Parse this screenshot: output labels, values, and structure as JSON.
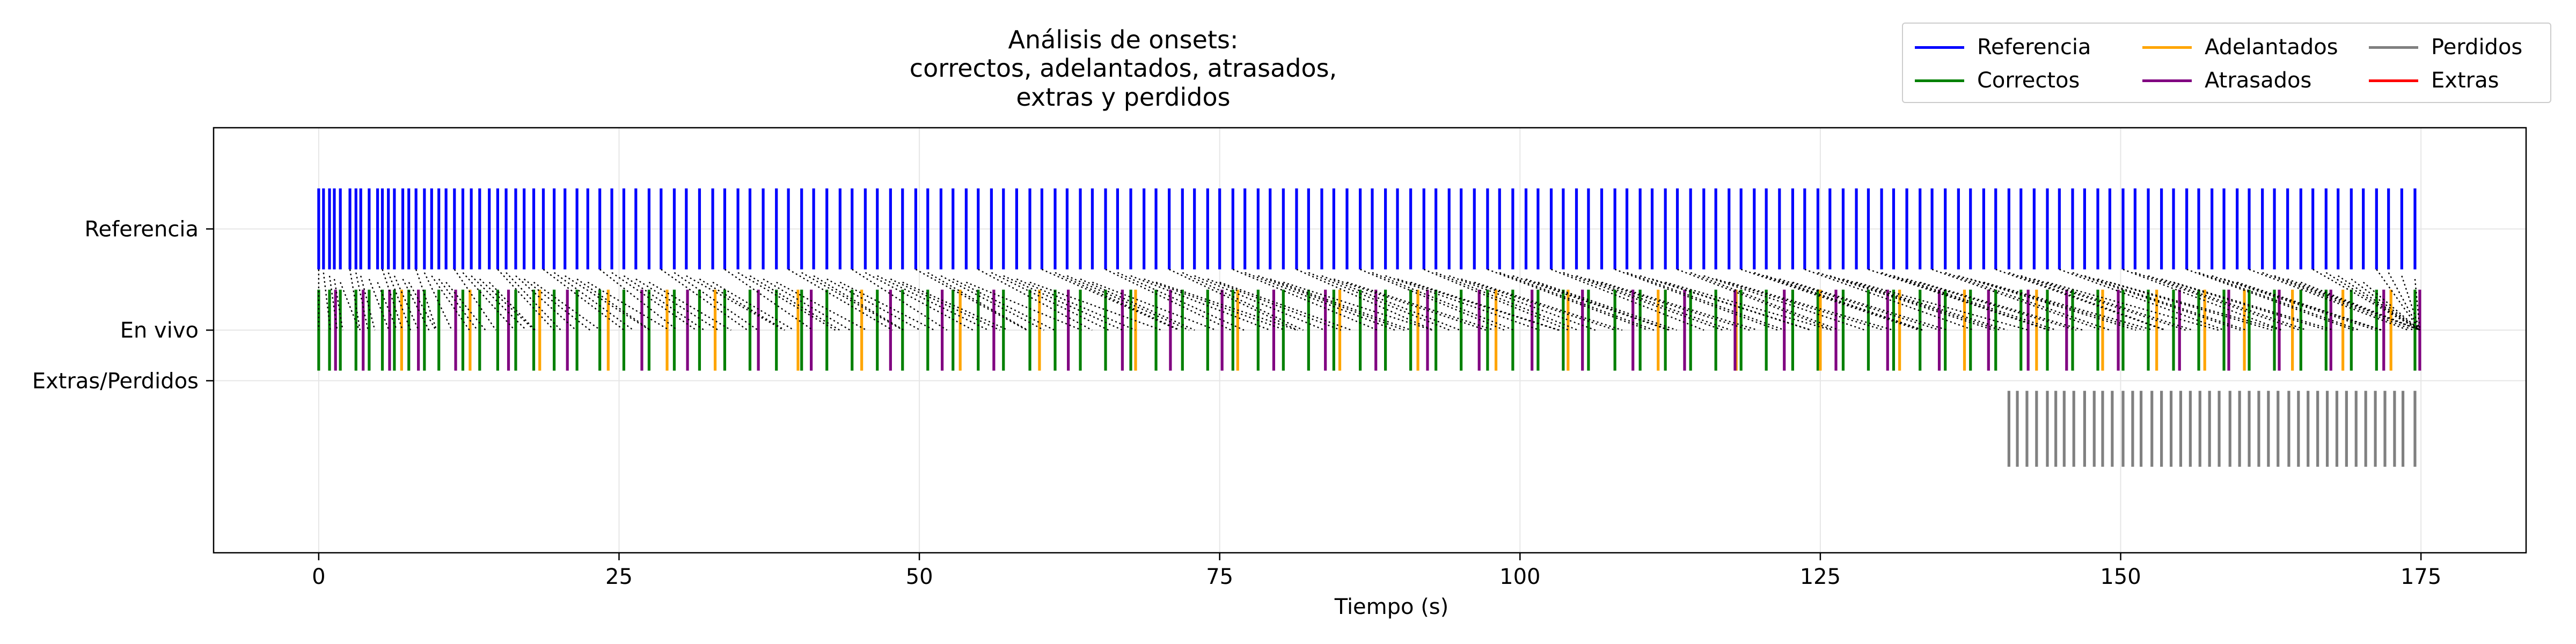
{
  "chart_data": {
    "type": "event-raster",
    "title": [
      "Análisis de onsets:",
      "correctos, adelantados, atrasados,",
      "extras y perdidos"
    ],
    "xlabel": "Tiempo (s)",
    "ylabel": "",
    "xlim": [
      -8.75,
      183.75
    ],
    "xticks": [
      0,
      25,
      50,
      75,
      100,
      125,
      150,
      175
    ],
    "xtick_labels": [
      "0",
      "25",
      "50",
      "75",
      "100",
      "125",
      "150",
      "175"
    ],
    "yticks": [
      {
        "label": "Referencia",
        "value": 2.0
      },
      {
        "label": "En vivo",
        "value": 1.0
      },
      {
        "label": "Extras/Perdidos",
        "value": 0.5
      }
    ],
    "ylim": [
      -1.2,
      3.0
    ],
    "grid": true,
    "legend": {
      "position": "top-right",
      "columns": 3,
      "entries": [
        {
          "name": "Referencia",
          "color": "#0000ff"
        },
        {
          "name": "Correctos",
          "color": "#008000"
        },
        {
          "name": "Adelantados",
          "color": "#ffa500"
        },
        {
          "name": "Atrasados",
          "color": "#800080"
        },
        {
          "name": "Perdidos",
          "color": "#808080"
        },
        {
          "name": "Extras",
          "color": "#ff0000"
        }
      ]
    },
    "series": [
      {
        "name": "Referencia",
        "row_y": [
          1.6,
          2.4
        ],
        "color": "#0000ff",
        "times": [
          0.0,
          0.4,
          0.9,
          1.3,
          1.8,
          2.6,
          3.1,
          3.5,
          4.2,
          4.9,
          5.3,
          5.8,
          6.3,
          7.0,
          7.5,
          8.1,
          8.8,
          9.4,
          10.0,
          10.6,
          11.3,
          12.0,
          12.7,
          13.4,
          14.2,
          14.9,
          15.6,
          16.4,
          17.1,
          17.9,
          18.7,
          19.6,
          20.5,
          21.5,
          22.4,
          23.4,
          24.4,
          25.4,
          26.4,
          27.5,
          28.5,
          29.6,
          30.6,
          31.7,
          32.8,
          33.8,
          34.9,
          35.9,
          37.0,
          38.1,
          39.1,
          40.2,
          41.2,
          42.3,
          43.4,
          44.4,
          45.5,
          46.5,
          47.6,
          48.6,
          49.7,
          50.7,
          51.8,
          52.8,
          53.9,
          54.9,
          56.0,
          57.0,
          58.1,
          59.2,
          60.2,
          61.3,
          62.3,
          63.4,
          64.4,
          65.5,
          66.5,
          67.6,
          68.7,
          69.7,
          70.8,
          71.9,
          72.9,
          74.0,
          75.0,
          76.1,
          77.1,
          78.2,
          79.2,
          80.3,
          81.4,
          82.4,
          83.5,
          84.5,
          85.6,
          86.7,
          87.7,
          88.8,
          89.8,
          90.9,
          92.0,
          93.0,
          94.1,
          95.1,
          96.2,
          97.3,
          98.3,
          99.4,
          100.5,
          101.5,
          102.6,
          103.6,
          104.7,
          105.7,
          106.8,
          107.9,
          108.9,
          110.0,
          111.0,
          112.1,
          113.1,
          114.2,
          115.3,
          116.3,
          117.4,
          118.4,
          119.5,
          120.5,
          121.6,
          122.7,
          123.7,
          124.8,
          125.8,
          126.9,
          128.0,
          129.0,
          130.1,
          131.1,
          132.2,
          133.3,
          134.3,
          135.4,
          136.5,
          137.5,
          138.6,
          139.6,
          140.7,
          141.7,
          142.8,
          143.9,
          144.9,
          146.0,
          147.0,
          148.1,
          149.1,
          150.2,
          151.2,
          152.3,
          153.4,
          154.4,
          155.5,
          156.5,
          157.6,
          158.6,
          159.7,
          160.7,
          161.8,
          162.8,
          163.9,
          165.0,
          166.0,
          167.1,
          168.1,
          169.2,
          170.2,
          171.3,
          172.3,
          173.4,
          174.5
        ]
      },
      {
        "name": "Correctos",
        "row_y": [
          0.6,
          1.4
        ],
        "color": "#008000",
        "times": [
          0.0,
          0.9,
          1.8,
          3.1,
          4.2,
          5.3,
          6.3,
          7.5,
          8.8,
          10.0,
          12.0,
          13.4,
          14.9,
          16.4,
          17.9,
          19.6,
          21.5,
          23.4,
          25.4,
          27.5,
          29.6,
          31.7,
          33.8,
          35.9,
          38.1,
          40.2,
          42.3,
          44.4,
          46.5,
          48.6,
          50.7,
          52.8,
          54.9,
          57.0,
          59.2,
          61.3,
          63.4,
          65.5,
          67.6,
          69.7,
          71.9,
          74.0,
          76.1,
          78.2,
          80.3,
          82.4,
          84.5,
          86.7,
          88.8,
          90.9,
          93.0,
          95.1,
          97.3,
          99.4,
          101.5,
          103.6,
          105.7,
          107.9,
          110.0,
          112.1,
          114.2,
          116.3,
          118.4,
          120.5,
          122.7,
          124.8,
          126.9,
          129.0,
          131.1,
          133.3,
          135.4,
          137.5,
          139.6,
          141.7,
          143.9,
          146.0,
          148.1,
          150.2,
          152.3,
          154.4,
          156.5,
          158.6,
          160.7,
          162.8,
          165.0,
          167.1,
          169.2,
          171.3,
          174.5
        ]
      },
      {
        "name": "Adelantados",
        "row_y": [
          0.6,
          1.4
        ],
        "color": "#ffa500",
        "times": [
          6.9,
          12.6,
          18.4,
          24.1,
          29.0,
          33.0,
          39.9,
          45.2,
          53.4,
          60.0,
          68.0,
          76.5,
          85.0,
          91.5,
          98.0,
          104.0,
          111.5,
          118.0,
          125.0,
          131.6,
          137.0,
          143.0,
          148.5,
          153.0,
          157.0,
          160.3,
          164.3,
          168.5,
          172.5
        ]
      },
      {
        "name": "Atrasados",
        "row_y": [
          0.6,
          1.4
        ],
        "color": "#800080",
        "times": [
          1.4,
          3.7,
          5.9,
          8.3,
          11.4,
          15.8,
          20.7,
          26.9,
          30.7,
          36.6,
          41.0,
          47.6,
          51.9,
          56.2,
          62.4,
          66.9,
          70.9,
          75.2,
          79.5,
          83.8,
          88.0,
          92.3,
          96.6,
          101.0,
          105.2,
          109.4,
          113.7,
          117.9,
          122.0,
          126.3,
          130.6,
          134.9,
          139.0,
          142.3,
          145.5,
          149.8,
          154.9,
          159.0,
          163.2,
          167.5,
          171.9,
          174.9
        ]
      },
      {
        "name": "Perdidos",
        "row_y": [
          -0.35,
          0.4
        ],
        "color": "#808080",
        "times": [
          140.7,
          141.4,
          142.2,
          143.0,
          143.9,
          144.6,
          145.3,
          146.1,
          147.0,
          147.8,
          148.5,
          149.3,
          150.2,
          151.0,
          151.7,
          152.6,
          153.4,
          154.2,
          155.0,
          155.8,
          156.6,
          157.4,
          158.2,
          159.1,
          159.9,
          160.7,
          161.5,
          162.3,
          163.1,
          164.0,
          164.8,
          165.6,
          166.4,
          167.2,
          168.0,
          168.8,
          169.6,
          170.4,
          171.2,
          172.0,
          172.8,
          173.5,
          174.5
        ]
      },
      {
        "name": "Extras",
        "row_y": [
          0.6,
          1.4
        ],
        "color": "#ff0000",
        "times": []
      }
    ]
  }
}
